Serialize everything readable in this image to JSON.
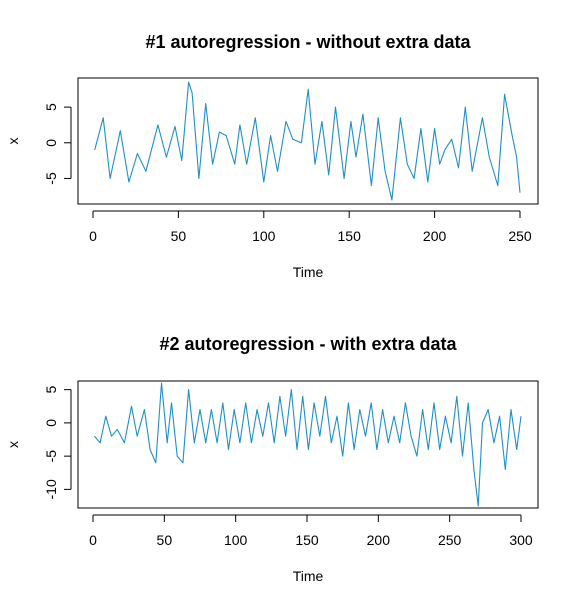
{
  "chart_data": [
    {
      "type": "line",
      "title": "#1 autoregression - without extra data",
      "xlabel": "Time",
      "ylabel": "x",
      "xlim": [
        0,
        250
      ],
      "ylim": [
        -8.3,
        8.8
      ],
      "xticks": [
        0,
        50,
        100,
        150,
        200,
        250
      ],
      "yticks": [
        -5,
        0,
        5
      ],
      "color": "#1f8fc8",
      "series": [
        {
          "x": [
            1,
            6,
            10,
            16,
            21,
            26,
            31,
            38,
            43,
            48,
            52,
            56,
            58,
            62,
            66,
            70,
            74,
            78,
            83,
            86,
            90,
            95,
            100,
            104,
            108,
            113,
            117,
            122,
            126,
            130,
            134,
            138,
            142,
            147,
            151,
            154,
            158,
            163,
            167,
            171,
            175,
            180,
            184,
            188,
            192,
            196,
            200,
            203,
            206,
            210,
            214,
            218,
            222,
            228,
            232,
            237,
            241,
            245,
            248,
            250
          ],
          "y": [
            -1,
            3.5,
            -5,
            1.7,
            -5.5,
            -1.5,
            -4,
            2.5,
            -2,
            2.3,
            -2.5,
            8.5,
            7,
            -5,
            5.5,
            -3,
            1.5,
            1,
            -3,
            2.5,
            -3,
            3.5,
            -5.5,
            1,
            -4,
            3,
            0.5,
            0,
            7.5,
            -3,
            3,
            -4.5,
            5,
            -5,
            3,
            -2,
            4,
            -6,
            3.5,
            -4,
            -8,
            3.5,
            -3,
            -5,
            2,
            -5.5,
            2,
            -3,
            -1,
            0.5,
            -3.5,
            5,
            -4,
            3.5,
            -2,
            -6,
            6.8,
            1.5,
            -2,
            -7
          ]
        }
      ]
    },
    {
      "type": "line",
      "title": "#2 autoregression - with extra data",
      "xlabel": "Time",
      "ylabel": "x",
      "xlim": [
        0,
        300
      ],
      "ylim": [
        -12.5,
        6
      ],
      "xticks": [
        0,
        50,
        100,
        150,
        200,
        250,
        300
      ],
      "yticks": [
        -10,
        -5,
        0,
        5
      ],
      "color": "#1f8fc8",
      "series": [
        {
          "x": [
            1,
            5,
            9,
            13,
            17,
            22,
            27,
            31,
            36,
            40,
            44,
            48,
            52,
            55,
            59,
            63,
            67,
            71,
            75,
            79,
            83,
            87,
            91,
            95,
            99,
            103,
            107,
            111,
            115,
            119,
            123,
            127,
            131,
            135,
            139,
            143,
            147,
            151,
            155,
            159,
            163,
            167,
            171,
            175,
            179,
            183,
            187,
            191,
            195,
            199,
            203,
            207,
            211,
            215,
            219,
            223,
            227,
            231,
            235,
            239,
            243,
            247,
            251,
            255,
            259,
            263,
            267,
            270,
            273,
            277,
            281,
            285,
            289,
            293,
            297,
            300
          ],
          "y": [
            -2,
            -3,
            1,
            -2,
            -1,
            -3,
            2.5,
            -2,
            2,
            -4,
            -6,
            6,
            -3,
            3,
            -5,
            -6,
            5,
            -3,
            2,
            -3,
            2,
            -3,
            3,
            -4,
            2,
            -3,
            3,
            -3,
            2,
            -2,
            3,
            -3,
            4,
            -2,
            5,
            -4,
            4,
            -4,
            3,
            -2,
            4,
            -3,
            1,
            -5,
            3,
            -4,
            2,
            -2,
            3,
            -4,
            2,
            -3,
            1,
            -3,
            3,
            -2,
            -5,
            2,
            -4,
            3,
            -4,
            1,
            -3,
            4,
            -5,
            3,
            -7,
            -12.5,
            0,
            2,
            -3,
            1,
            -7,
            2,
            -4,
            1
          ]
        }
      ]
    }
  ]
}
